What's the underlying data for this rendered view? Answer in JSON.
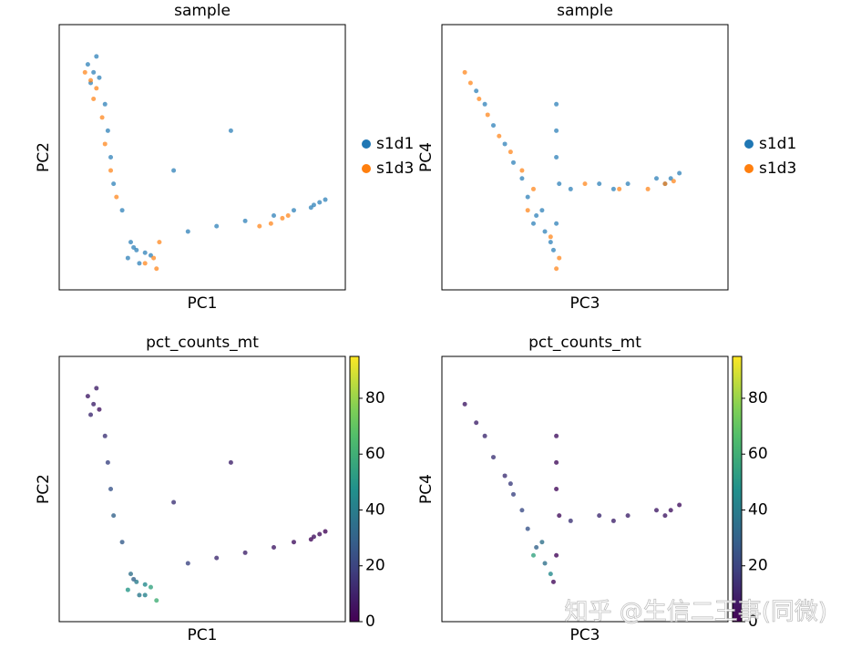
{
  "chart_data": [
    {
      "type": "scatter",
      "title": "sample",
      "xlabel": "PC1",
      "ylabel": "PC2",
      "xlim": [
        0,
        100
      ],
      "ylim": [
        0,
        100
      ],
      "legend": "right",
      "series": [
        {
          "name": "s1d1",
          "color": "#1f77b4",
          "x": [
            10,
            12,
            14,
            11,
            13,
            16,
            17,
            18,
            19,
            22,
            25,
            27,
            30,
            24,
            28,
            32,
            26,
            45,
            55,
            65,
            75,
            82,
            88,
            91,
            93,
            89,
            40,
            60
          ],
          "y": [
            85,
            82,
            80,
            78,
            88,
            70,
            60,
            50,
            40,
            30,
            18,
            15,
            14,
            12,
            10,
            13,
            16,
            22,
            24,
            26,
            28,
            30,
            31,
            33,
            34,
            32,
            45,
            60
          ]
        },
        {
          "name": "s1d3",
          "color": "#ff7f0e",
          "x": [
            9,
            11,
            13,
            15,
            16,
            18,
            20,
            30,
            34,
            33,
            70,
            74,
            78,
            80,
            35,
            12
          ],
          "y": [
            82,
            79,
            76,
            65,
            55,
            45,
            35,
            10,
            8,
            12,
            24,
            25,
            27,
            28,
            18,
            72
          ]
        }
      ]
    },
    {
      "type": "scatter",
      "title": "sample",
      "xlabel": "PC3",
      "ylabel": "PC4",
      "xlim": [
        0,
        100
      ],
      "ylim": [
        0,
        100
      ],
      "legend": "right",
      "series": [
        {
          "name": "s1d1",
          "color": "#1f77b4",
          "x": [
            12,
            15,
            18,
            22,
            25,
            28,
            30,
            33,
            36,
            38,
            40,
            40,
            40,
            41,
            40,
            39,
            45,
            55,
            65,
            75,
            80,
            83,
            78,
            35,
            32,
            60
          ],
          "y": [
            75,
            70,
            62,
            55,
            48,
            42,
            35,
            28,
            22,
            18,
            70,
            60,
            50,
            40,
            25,
            15,
            38,
            40,
            40,
            42,
            42,
            44,
            40,
            30,
            25,
            38
          ]
        },
        {
          "name": "s1d3",
          "color": "#ff7f0e",
          "x": [
            8,
            10,
            13,
            16,
            20,
            24,
            28,
            32,
            38,
            40,
            50,
            62,
            72,
            78,
            81,
            41,
            30
          ],
          "y": [
            82,
            78,
            72,
            66,
            58,
            52,
            45,
            38,
            20,
            8,
            40,
            38,
            38,
            40,
            41,
            12,
            30
          ]
        }
      ]
    },
    {
      "type": "scatter",
      "title": "pct_counts_mt",
      "xlabel": "PC1",
      "ylabel": "PC2",
      "xlim": [
        0,
        100
      ],
      "ylim": [
        0,
        100
      ],
      "colormap": "viridis",
      "clim": [
        0,
        95
      ],
      "cticks": [
        0,
        20,
        40,
        60,
        80
      ],
      "x": [
        10,
        12,
        14,
        11,
        13,
        16,
        17,
        18,
        19,
        22,
        25,
        27,
        30,
        24,
        28,
        32,
        26,
        45,
        55,
        65,
        75,
        82,
        88,
        91,
        93,
        89,
        40,
        60,
        30,
        34
      ],
      "y": [
        85,
        82,
        80,
        78,
        88,
        70,
        60,
        50,
        40,
        30,
        18,
        15,
        14,
        12,
        10,
        13,
        16,
        22,
        24,
        26,
        28,
        30,
        31,
        33,
        34,
        32,
        45,
        60,
        10,
        8
      ],
      "c": [
        8,
        10,
        6,
        12,
        9,
        15,
        20,
        25,
        30,
        28,
        35,
        40,
        45,
        50,
        38,
        55,
        30,
        20,
        12,
        10,
        8,
        5,
        3,
        4,
        2,
        5,
        15,
        10,
        42,
        60
      ]
    },
    {
      "type": "scatter",
      "title": "pct_counts_mt",
      "xlabel": "PC3",
      "ylabel": "PC4",
      "xlim": [
        0,
        100
      ],
      "ylim": [
        0,
        100
      ],
      "colormap": "viridis",
      "clim": [
        0,
        95
      ],
      "cticks": [
        0,
        20,
        40,
        60,
        80
      ],
      "x": [
        12,
        15,
        18,
        22,
        25,
        28,
        30,
        33,
        36,
        38,
        40,
        40,
        40,
        41,
        40,
        39,
        45,
        55,
        65,
        75,
        80,
        83,
        78,
        35,
        32,
        60,
        8,
        24
      ],
      "y": [
        75,
        70,
        62,
        55,
        48,
        42,
        35,
        28,
        22,
        18,
        70,
        60,
        50,
        40,
        25,
        15,
        38,
        40,
        40,
        42,
        42,
        44,
        40,
        30,
        25,
        38,
        82,
        52
      ],
      "c": [
        10,
        12,
        15,
        14,
        20,
        22,
        25,
        30,
        35,
        45,
        5,
        4,
        3,
        4,
        2,
        3,
        15,
        12,
        10,
        8,
        6,
        5,
        7,
        35,
        55,
        10,
        8,
        18
      ]
    }
  ],
  "watermark": "知乎 @生信二王事(同微)"
}
